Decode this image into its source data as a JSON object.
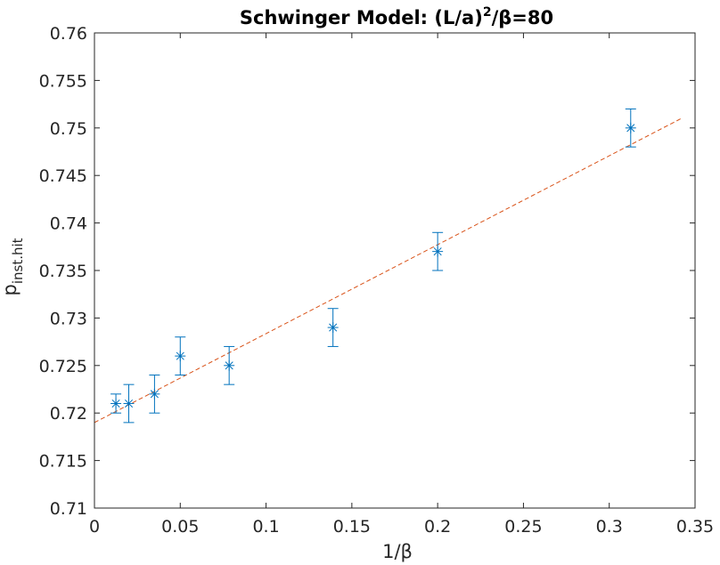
{
  "chart_data": {
    "type": "scatter",
    "title": {
      "main": "Schwinger Model: (L/a)",
      "sup": "2",
      "rest": "/β=80"
    },
    "xlabel": "1/β",
    "ylabel": {
      "main": "p",
      "sub": "inst.hit"
    },
    "xlim": [
      0,
      0.35
    ],
    "ylim": [
      0.71,
      0.76
    ],
    "x_ticks": [
      0,
      0.05,
      0.1,
      0.15,
      0.2,
      0.25,
      0.3,
      0.35
    ],
    "x_tick_labels": [
      "0",
      "0.05",
      "0.1",
      "0.15",
      "0.2",
      "0.25",
      "0.3",
      "0.35"
    ],
    "y_ticks": [
      0.71,
      0.715,
      0.72,
      0.725,
      0.73,
      0.735,
      0.74,
      0.745,
      0.75,
      0.755,
      0.76
    ],
    "y_tick_labels": [
      "0.71",
      "0.715",
      "0.72",
      "0.725",
      "0.73",
      "0.735",
      "0.74",
      "0.745",
      "0.75",
      "0.755",
      "0.76"
    ],
    "grid": false,
    "series": [
      {
        "marker": "asterisk",
        "color": "#0072BD",
        "x": [
          0.0125,
          0.02,
          0.035,
          0.05,
          0.0785,
          0.139,
          0.2,
          0.3125
        ],
        "y": [
          0.721,
          0.721,
          0.722,
          0.726,
          0.725,
          0.729,
          0.737,
          0.75
        ],
        "err": [
          0.001,
          0.002,
          0.002,
          0.002,
          0.002,
          0.002,
          0.002,
          0.002
        ]
      },
      {
        "type": "line",
        "style": "dashed",
        "color": "#D95319",
        "x": [
          0,
          0.342
        ],
        "y": [
          0.719,
          0.751
        ]
      }
    ]
  }
}
